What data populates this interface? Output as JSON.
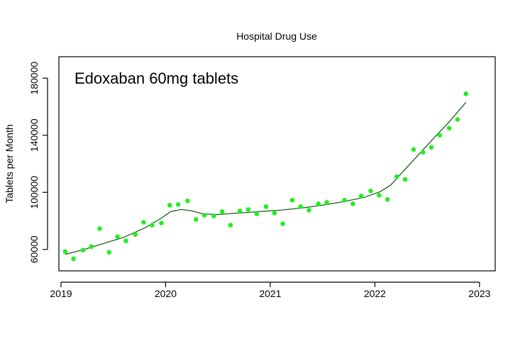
{
  "chart_data": {
    "type": "scatter",
    "title": "Hospital Drug Use",
    "annotation": "Edoxaban 60mg tablets",
    "xlabel": "",
    "ylabel": "Tablets per Month",
    "xlim": [
      2018.98,
      2023.15
    ],
    "ylim": [
      45000,
      195000
    ],
    "x_ticks": [
      2019,
      2020,
      2021,
      2022,
      2023
    ],
    "x_tick_labels": [
      "2019",
      "2020",
      "2021",
      "2022",
      "2023"
    ],
    "y_ticks": [
      60000,
      100000,
      140000,
      180000
    ],
    "y_tick_labels": [
      "60000",
      "100000",
      "140000",
      "180000"
    ],
    "grid": false,
    "legend": "none",
    "point_color": "#22ee22",
    "line_color": "#1a5e1a",
    "series": [
      {
        "type": "scatter",
        "x": [
          2019.04,
          2019.12,
          2019.21,
          2019.29,
          2019.37,
          2019.46,
          2019.54,
          2019.62,
          2019.71,
          2019.79,
          2019.87,
          2019.96,
          2020.04,
          2020.12,
          2020.21,
          2020.29,
          2020.37,
          2020.46,
          2020.54,
          2020.62,
          2020.71,
          2020.79,
          2020.87,
          2020.96,
          2021.04,
          2021.12,
          2021.21,
          2021.29,
          2021.37,
          2021.46,
          2021.54,
          2021.71,
          2021.79,
          2021.87,
          2021.96,
          2022.04,
          2022.12,
          2022.21,
          2022.29,
          2022.37,
          2022.46,
          2022.54,
          2022.62,
          2022.71,
          2022.79,
          2022.87
        ],
        "y": [
          58500,
          53500,
          59500,
          62000,
          74500,
          58000,
          69000,
          66000,
          70500,
          79000,
          77000,
          78500,
          91000,
          91500,
          94000,
          81000,
          84000,
          83500,
          86500,
          77000,
          87000,
          88000,
          85000,
          90000,
          85500,
          78000,
          94500,
          90000,
          87500,
          92000,
          93000,
          94500,
          92000,
          97500,
          101000,
          98000,
          95000,
          111000,
          109000,
          130000,
          128000,
          131500,
          140000,
          145000,
          151000,
          169000
        ]
      },
      {
        "type": "line",
        "name": "",
        "x": [
          2019.04,
          2019.2,
          2019.4,
          2019.6,
          2019.8,
          2019.95,
          2020.05,
          2020.15,
          2020.25,
          2020.35,
          2020.5,
          2020.7,
          2020.9,
          2021.1,
          2021.3,
          2021.5,
          2021.7,
          2021.9,
          2022.05,
          2022.15,
          2022.25,
          2022.4,
          2022.55,
          2022.7,
          2022.87
        ],
        "y": [
          56500,
          59500,
          64000,
          68500,
          75000,
          81500,
          86500,
          88000,
          87000,
          85000,
          84500,
          85500,
          86500,
          87500,
          89000,
          91000,
          93500,
          96500,
          100500,
          105000,
          113000,
          125000,
          137000,
          148500,
          163000
        ]
      }
    ]
  }
}
